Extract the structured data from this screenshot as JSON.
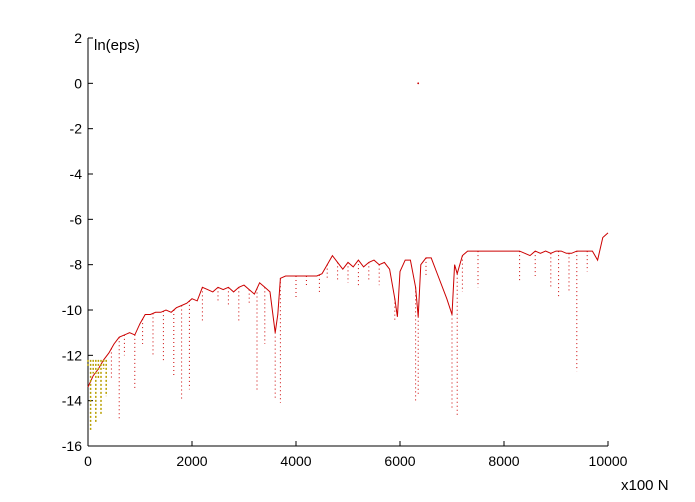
{
  "chart_data": {
    "type": "line",
    "ylabel": "ln(eps)",
    "xlabel_suffix": "x100 N",
    "xlim": [
      0,
      10000
    ],
    "ylim": [
      -16,
      2
    ],
    "x_ticks": [
      0,
      2000,
      4000,
      6000,
      8000,
      10000
    ],
    "x_tick_labels": [
      "0",
      "2000",
      "4000",
      "6000",
      "8000",
      "10000"
    ],
    "y_ticks": [
      2,
      0,
      -2,
      -4,
      -6,
      -8,
      -10,
      -12,
      -14,
      -16
    ],
    "y_tick_labels": [
      "2",
      "0",
      "-2",
      "-4",
      "-6",
      "-8",
      "-10",
      "-12",
      "-14",
      "-16"
    ],
    "grid": false,
    "series_color": "#cc0000",
    "early_color": "#b8a000",
    "series": [
      {
        "style": "line",
        "x": [
          0,
          100,
          200,
          300,
          400,
          500,
          600,
          700,
          800,
          900,
          1000,
          1100,
          1200,
          1300,
          1400,
          1500,
          1600,
          1700,
          1800,
          1900,
          2000,
          2100,
          2200,
          2300,
          2400,
          2500,
          2600,
          2700,
          2800,
          2900,
          3000,
          3100,
          3200,
          3300,
          3400,
          3500,
          3600,
          3650,
          3700,
          3800,
          3900,
          4000,
          4200,
          4400,
          4500,
          4600,
          4700,
          4800,
          4900,
          5000,
          5100,
          5200,
          5300,
          5400,
          5500,
          5600,
          5700,
          5800,
          5900,
          5950,
          6000,
          6100,
          6200,
          6300,
          6350,
          6400,
          6500,
          6600,
          6700,
          6900,
          7000,
          7050,
          7100,
          7200,
          7300,
          7400,
          7500,
          7600,
          7700,
          7800,
          7900,
          8000,
          8100,
          8200,
          8300,
          8400,
          8500,
          8600,
          8700,
          8800,
          8900,
          9000,
          9100,
          9200,
          9300,
          9400,
          9500,
          9600,
          9700,
          9800,
          9900,
          10000
        ],
        "y": [
          -13.4,
          -12.9,
          -12.6,
          -12.2,
          -11.9,
          -11.5,
          -11.2,
          -11.1,
          -11.0,
          -11.1,
          -10.6,
          -10.2,
          -10.2,
          -10.1,
          -10.1,
          -10.0,
          -10.1,
          -9.9,
          -9.8,
          -9.7,
          -9.5,
          -9.6,
          -9.0,
          -9.1,
          -9.2,
          -9.0,
          -9.1,
          -9.0,
          -9.2,
          -9.0,
          -8.9,
          -9.1,
          -9.3,
          -8.8,
          -9.0,
          -9.2,
          -11.0,
          -10.2,
          -8.6,
          -8.5,
          -8.5,
          -8.5,
          -8.5,
          -8.5,
          -8.4,
          -8.0,
          -7.6,
          -7.9,
          -8.2,
          -7.9,
          -8.1,
          -7.8,
          -8.1,
          -7.9,
          -7.8,
          -8.0,
          -7.9,
          -8.2,
          -9.5,
          -10.3,
          -8.3,
          -7.8,
          -7.8,
          -9.0,
          -10.3,
          -8.0,
          -7.7,
          -7.7,
          -8.3,
          -9.5,
          -10.2,
          -8.0,
          -8.4,
          -7.6,
          -7.4,
          -7.4,
          -7.4,
          -7.4,
          -7.4,
          -7.4,
          -7.4,
          -7.4,
          -7.4,
          -7.4,
          -7.4,
          -7.5,
          -7.6,
          -7.4,
          -7.5,
          -7.4,
          -7.5,
          -7.4,
          -7.4,
          -7.5,
          -7.5,
          -7.4,
          -7.4,
          -7.4,
          -7.4,
          -7.8,
          -6.8,
          -6.6
        ]
      },
      {
        "style": "dotted_drops",
        "x": [
          200,
          300,
          450,
          600,
          700,
          900,
          1050,
          1250,
          1450,
          1650,
          1800,
          1950,
          2200,
          2500,
          2700,
          2900,
          3100,
          3250,
          3400,
          3600,
          3700,
          4000,
          4200,
          4450,
          4600,
          4800,
          5000,
          5200,
          5400,
          5600,
          5900,
          6300,
          6350,
          6500,
          7000,
          7100,
          7200,
          7500,
          8300,
          8600,
          8900,
          9050,
          9250,
          9400,
          9600
        ],
        "y": [
          -13.0,
          -12.5,
          -13.0,
          -14.8,
          -12.0,
          -13.5,
          -11.5,
          -12.0,
          -12.3,
          -13.0,
          -14.0,
          -13.5,
          -10.5,
          -9.6,
          -9.8,
          -10.5,
          -9.8,
          -13.6,
          -11.5,
          -13.9,
          -14.1,
          -9.5,
          -9.0,
          -9.2,
          -8.6,
          -8.7,
          -8.8,
          -8.9,
          -8.7,
          -8.9,
          -10.5,
          -14.0,
          -13.8,
          -8.5,
          -14.4,
          -14.7,
          -9.2,
          -9.0,
          -8.7,
          -8.5,
          -9.0,
          -9.5,
          -9.2,
          -12.7,
          -8.3
        ]
      },
      {
        "style": "early_band",
        "x": [
          0,
          50,
          100,
          150,
          200,
          250,
          300,
          350
        ],
        "y": [
          -12.5,
          -15.3,
          -12.8,
          -15.0,
          -13.0,
          -14.6,
          -12.6,
          -13.8
        ]
      },
      {
        "style": "outlier",
        "x": [
          6350
        ],
        "y": [
          0.0
        ]
      }
    ]
  }
}
